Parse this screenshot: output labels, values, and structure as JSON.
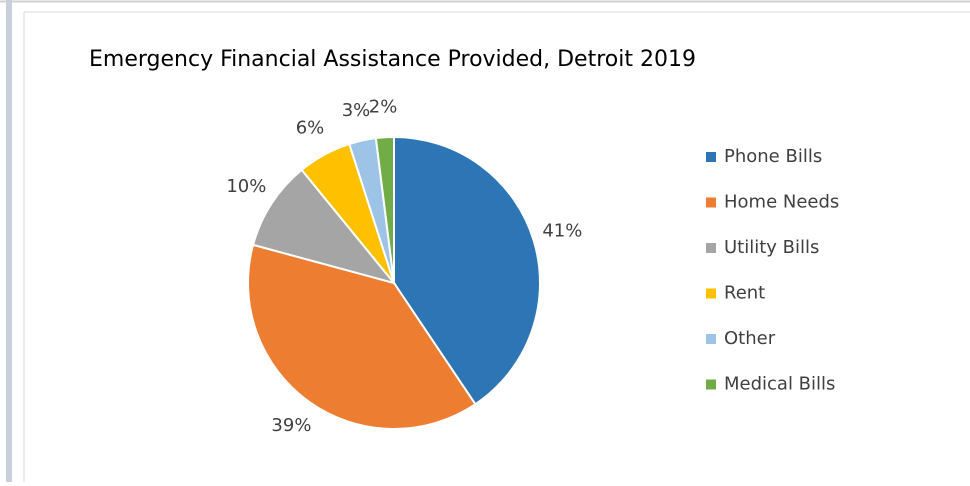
{
  "chart_data": {
    "type": "pie",
    "title": "Emergency Financial Assistance Provided, Detroit 2019",
    "categories": [
      "Phone Bills",
      "Home Needs",
      "Utility Bills",
      "Rent",
      "Other",
      "Medical Bills"
    ],
    "values": [
      41,
      39,
      10,
      6,
      3,
      2
    ],
    "value_labels": [
      "41%",
      "39%",
      "10%",
      "6%",
      "3%",
      "2%"
    ],
    "colors": [
      "#2e75b6",
      "#ed7d31",
      "#a5a5a5",
      "#ffc000",
      "#9dc3e6",
      "#70ad47"
    ],
    "legend": "right"
  }
}
